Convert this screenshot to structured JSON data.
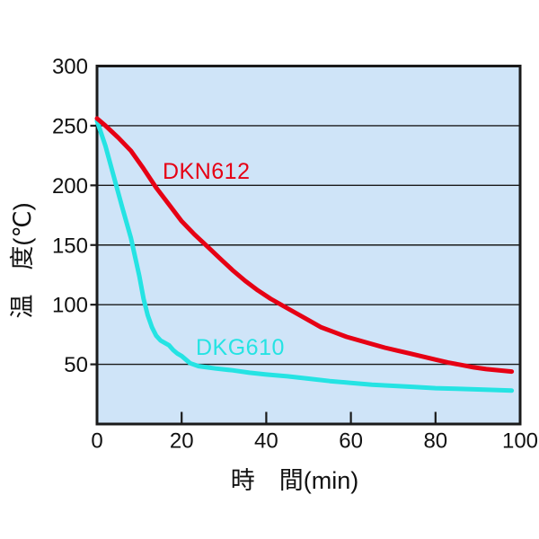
{
  "chart_data": {
    "type": "line",
    "title": "",
    "xlabel": "時　間(min)",
    "ylabel": "温　度(℃)",
    "xlim": [
      0,
      100
    ],
    "ylim": [
      0,
      300
    ],
    "x_ticks": [
      0,
      20,
      40,
      60,
      80,
      100
    ],
    "y_ticks": [
      300,
      250,
      200,
      150,
      100,
      50
    ],
    "grid": "horizontal-only",
    "legend_position": "inline-labels",
    "colors": {
      "plot_background": "#cfe4f8",
      "axis": "#1a1a1a",
      "dkn612": "#e60014",
      "dkg610": "#25e3e3"
    },
    "series": [
      {
        "name": "DKN612",
        "color_key": "dkn612",
        "points": [
          [
            0,
            256
          ],
          [
            2,
            250
          ],
          [
            5,
            240
          ],
          [
            8,
            229
          ],
          [
            11,
            214
          ],
          [
            14,
            198
          ],
          [
            17,
            184
          ],
          [
            20,
            170
          ],
          [
            23,
            159
          ],
          [
            26,
            149
          ],
          [
            29,
            139
          ],
          [
            32,
            129
          ],
          [
            35,
            120
          ],
          [
            38,
            112
          ],
          [
            41,
            105
          ],
          [
            44,
            99
          ],
          [
            47,
            93
          ],
          [
            50,
            87
          ],
          [
            53,
            81
          ],
          [
            56,
            77
          ],
          [
            59,
            73
          ],
          [
            62,
            70
          ],
          [
            65,
            67
          ],
          [
            68,
            64
          ],
          [
            71,
            61.5
          ],
          [
            74,
            59
          ],
          [
            77,
            56.5
          ],
          [
            80,
            54
          ],
          [
            83,
            51.5
          ],
          [
            86,
            49.5
          ],
          [
            89,
            47.5
          ],
          [
            92,
            46
          ],
          [
            95,
            45
          ],
          [
            98,
            44
          ]
        ]
      },
      {
        "name": "DKG610",
        "color_key": "dkg610",
        "points": [
          [
            0,
            254
          ],
          [
            2,
            233
          ],
          [
            4,
            207
          ],
          [
            6,
            181
          ],
          [
            8,
            156
          ],
          [
            10,
            124
          ],
          [
            11,
            105
          ],
          [
            12,
            91
          ],
          [
            13,
            81
          ],
          [
            14,
            74
          ],
          [
            15,
            70
          ],
          [
            16,
            68
          ],
          [
            17,
            66
          ],
          [
            18,
            62
          ],
          [
            19,
            59
          ],
          [
            20,
            57
          ],
          [
            22,
            51
          ],
          [
            24,
            48.5
          ],
          [
            26,
            47.5
          ],
          [
            28,
            46.5
          ],
          [
            32,
            45
          ],
          [
            36,
            43
          ],
          [
            40,
            41.5
          ],
          [
            45,
            40
          ],
          [
            50,
            38
          ],
          [
            55,
            36
          ],
          [
            60,
            34.5
          ],
          [
            65,
            33
          ],
          [
            70,
            32
          ],
          [
            75,
            31
          ],
          [
            80,
            30
          ],
          [
            85,
            29.5
          ],
          [
            90,
            29
          ],
          [
            94,
            28.5
          ],
          [
            98,
            28
          ]
        ]
      }
    ]
  }
}
